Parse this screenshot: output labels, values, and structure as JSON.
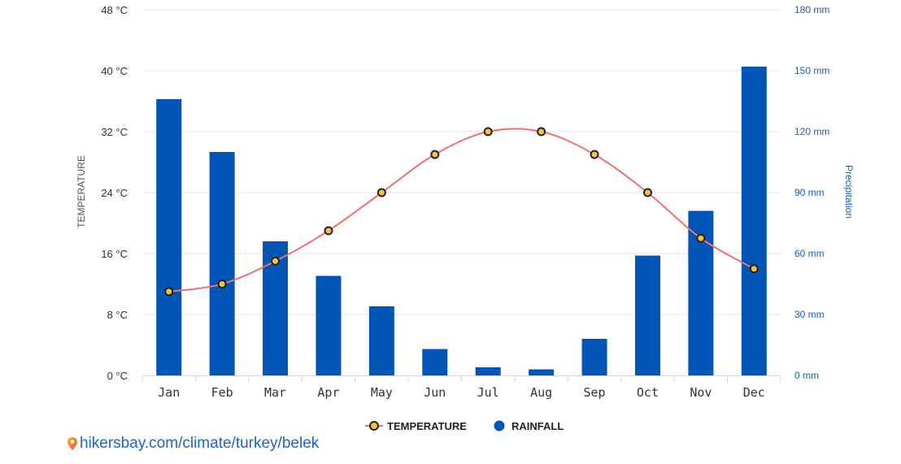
{
  "chart_data": {
    "type": "bar",
    "categories": [
      "Jan",
      "Feb",
      "Mar",
      "Apr",
      "May",
      "Jun",
      "Jul",
      "Aug",
      "Sep",
      "Oct",
      "Nov",
      "Dec"
    ],
    "series": [
      {
        "name": "RAINFALL",
        "kind": "bar",
        "axis": "right",
        "color": "#0055b5",
        "values": [
          136,
          110,
          66,
          49,
          34,
          13,
          4,
          3,
          18,
          59,
          81,
          152
        ]
      },
      {
        "name": "TEMPERATURE",
        "kind": "line",
        "axis": "left",
        "color": "#f07070",
        "marker_fill": "#f5c14a",
        "values": [
          11,
          12,
          15,
          19,
          24,
          29,
          32,
          32,
          29,
          24,
          18,
          14
        ]
      }
    ],
    "left_axis": {
      "title": "TEMPERATURE",
      "ylim": [
        0,
        48
      ],
      "ticks": [
        0,
        8,
        16,
        24,
        32,
        40,
        48
      ],
      "tick_labels": [
        "0 °C",
        "8 °C",
        "16 °C",
        "24 °C",
        "32 °C",
        "40 °C",
        "48 °C"
      ]
    },
    "right_axis": {
      "title": "Precipitation",
      "ylim": [
        0,
        180
      ],
      "ticks": [
        0,
        30,
        60,
        90,
        120,
        150,
        180
      ],
      "tick_labels": [
        "0 mm",
        "30 mm",
        "60 mm",
        "90 mm",
        "120 mm",
        "150 mm",
        "180 mm"
      ]
    },
    "grid": true,
    "legend": {
      "position": "bottom-center",
      "items": [
        {
          "label": "TEMPERATURE",
          "marker": "line-circle"
        },
        {
          "label": "RAINFALL",
          "marker": "circle"
        }
      ]
    }
  },
  "source": {
    "text": "hikersbay.com/climate/turkey/belek",
    "icon": "location-pin-icon"
  },
  "colors": {
    "bar": "#0055b5",
    "line": "#f07070",
    "marker": "#f5c14a",
    "grid": "#e6e6e6",
    "right_axis": "#1d5fb5"
  }
}
